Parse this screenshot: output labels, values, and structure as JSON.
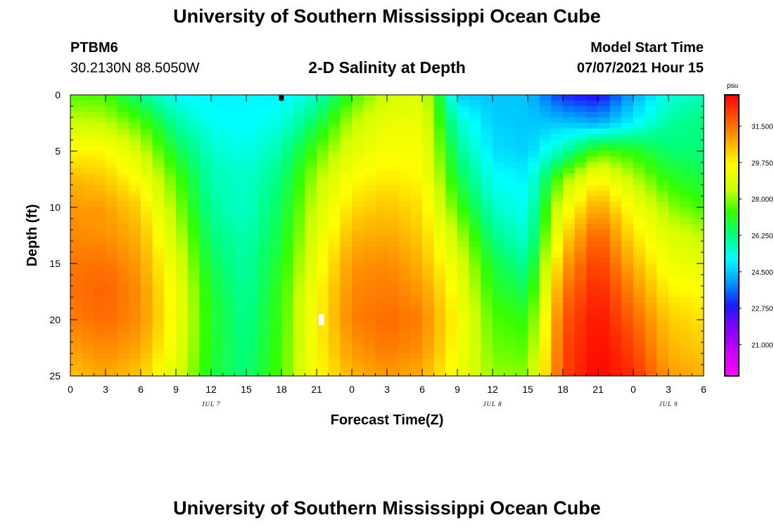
{
  "header": {
    "title": "University of Southern Mississippi Ocean Cube",
    "station": "PTBM6",
    "coordinates": "30.2130N  88.5050W",
    "plot_title": "2-D Salinity at Depth",
    "model_start_label": "Model Start Time",
    "model_start_value": "07/07/2021 Hour 15"
  },
  "footer": {
    "title": "University of Southern Mississippi Ocean Cube"
  },
  "chart_data": {
    "type": "heatmap",
    "title": "2-D Salinity at Depth",
    "xlabel": "Forecast Time(Z)",
    "ylabel": "Depth (ft)",
    "x_range_hours": [
      0,
      54
    ],
    "x_tick_hours": [
      0,
      3,
      6,
      9,
      12,
      15,
      18,
      21,
      24,
      27,
      30,
      33,
      36,
      39,
      42,
      45,
      48,
      51,
      54
    ],
    "x_tick_labels": [
      "0",
      "3",
      "6",
      "9",
      "12",
      "15",
      "18",
      "21",
      "0",
      "3",
      "6",
      "9",
      "12",
      "15",
      "18",
      "21",
      "0",
      "3",
      "6"
    ],
    "date_labels": [
      {
        "text": "JUL 7",
        "hour": 12
      },
      {
        "text": "JUL 8",
        "hour": 36
      },
      {
        "text": "JUL 9",
        "hour": 51
      }
    ],
    "y_range_ft": [
      0,
      25
    ],
    "y_ticks": [
      0,
      5,
      10,
      15,
      20,
      25
    ],
    "y_tick_labels": [
      "0",
      "5",
      "10",
      "15",
      "20",
      "25"
    ],
    "colorbar": {
      "unit": "psu",
      "vmin": 19.5,
      "vmax": 33.0,
      "tick_values": [
        21.0,
        22.75,
        24.5,
        26.25,
        28.0,
        29.75,
        31.5
      ],
      "tick_labels": [
        "21.000",
        "22.750",
        "24.500",
        "26.250",
        "28.000",
        "29.750",
        "31.500"
      ],
      "colors": [
        "#ff00ff",
        "#cc00ff",
        "#8800ff",
        "#1a1aff",
        "#0099ff",
        "#00ffff",
        "#00ff80",
        "#33ff00",
        "#ccff00",
        "#ffff00",
        "#ffaa00",
        "#ff5500",
        "#ff0000"
      ]
    },
    "salinity_grid": {
      "depths_ft": [
        0,
        2.5,
        5,
        7.5,
        10,
        12.5,
        15,
        17.5,
        20,
        22.5,
        25
      ],
      "hours": [
        0,
        3,
        6,
        9,
        12,
        15,
        18,
        21,
        24,
        27,
        30,
        33,
        36,
        39,
        42,
        45,
        48,
        51,
        54
      ],
      "values_psu": [
        [
          27.6,
          27.5,
          26.2,
          25.1,
          25.0,
          25.0,
          25.0,
          25.6,
          27.4,
          28.6,
          29.0,
          24.6,
          24.5,
          24.5,
          23.0,
          22.6,
          24.2,
          25.4,
          25.8
        ],
        [
          28.6,
          28.4,
          27.6,
          26.0,
          25.2,
          25.1,
          25.4,
          26.6,
          28.4,
          29.2,
          29.2,
          25.6,
          24.6,
          24.5,
          24.5,
          24.2,
          25.0,
          26.0,
          26.3
        ],
        [
          29.7,
          29.7,
          28.6,
          26.8,
          25.6,
          25.3,
          25.9,
          27.6,
          29.0,
          29.5,
          29.5,
          26.2,
          24.8,
          24.6,
          25.8,
          27.5,
          27.2,
          26.4,
          26.3
        ],
        [
          30.6,
          30.3,
          29.5,
          27.6,
          25.8,
          25.6,
          26.3,
          28.3,
          29.6,
          29.9,
          29.7,
          26.8,
          25.2,
          25.0,
          28.0,
          29.8,
          28.4,
          27.2,
          26.8
        ],
        [
          31.0,
          30.9,
          30.2,
          28.1,
          26.0,
          25.6,
          26.6,
          28.7,
          30.1,
          30.4,
          30.0,
          27.6,
          25.6,
          25.2,
          29.2,
          30.9,
          29.4,
          28.1,
          27.4
        ],
        [
          31.2,
          31.1,
          30.6,
          28.6,
          26.3,
          25.8,
          26.8,
          29.0,
          30.6,
          30.8,
          30.3,
          28.4,
          26.2,
          25.5,
          30.0,
          31.8,
          30.0,
          28.9,
          28.4
        ],
        [
          31.4,
          31.5,
          30.9,
          29.0,
          26.6,
          25.9,
          27.1,
          29.3,
          31.0,
          31.2,
          30.6,
          29.0,
          26.8,
          26.0,
          30.8,
          32.3,
          30.6,
          29.3,
          29.1
        ],
        [
          31.5,
          31.7,
          31.1,
          29.3,
          26.9,
          26.0,
          27.3,
          29.6,
          31.2,
          31.4,
          31.0,
          29.4,
          27.2,
          26.6,
          31.4,
          32.6,
          31.2,
          29.8,
          29.6
        ],
        [
          31.3,
          31.6,
          31.1,
          29.4,
          27.0,
          26.1,
          27.4,
          29.7,
          31.3,
          31.6,
          31.3,
          29.6,
          27.6,
          27.2,
          31.8,
          32.8,
          31.7,
          30.3,
          30.0
        ],
        [
          30.9,
          31.2,
          30.8,
          29.2,
          27.0,
          26.2,
          27.5,
          29.7,
          31.0,
          31.4,
          31.1,
          29.5,
          27.8,
          27.6,
          32.0,
          32.9,
          32.1,
          30.6,
          30.3
        ],
        [
          30.4,
          30.8,
          30.3,
          28.9,
          26.9,
          26.3,
          27.6,
          29.6,
          30.6,
          31.0,
          30.7,
          29.3,
          28.1,
          28.0,
          32.1,
          33.0,
          32.4,
          31.0,
          30.6
        ]
      ]
    },
    "markers": [
      {
        "name": "black-marker",
        "hour": 18,
        "depth_ft": 0.2
      },
      {
        "name": "white-marker",
        "hour": 21.4,
        "depth_ft": 20
      }
    ]
  }
}
